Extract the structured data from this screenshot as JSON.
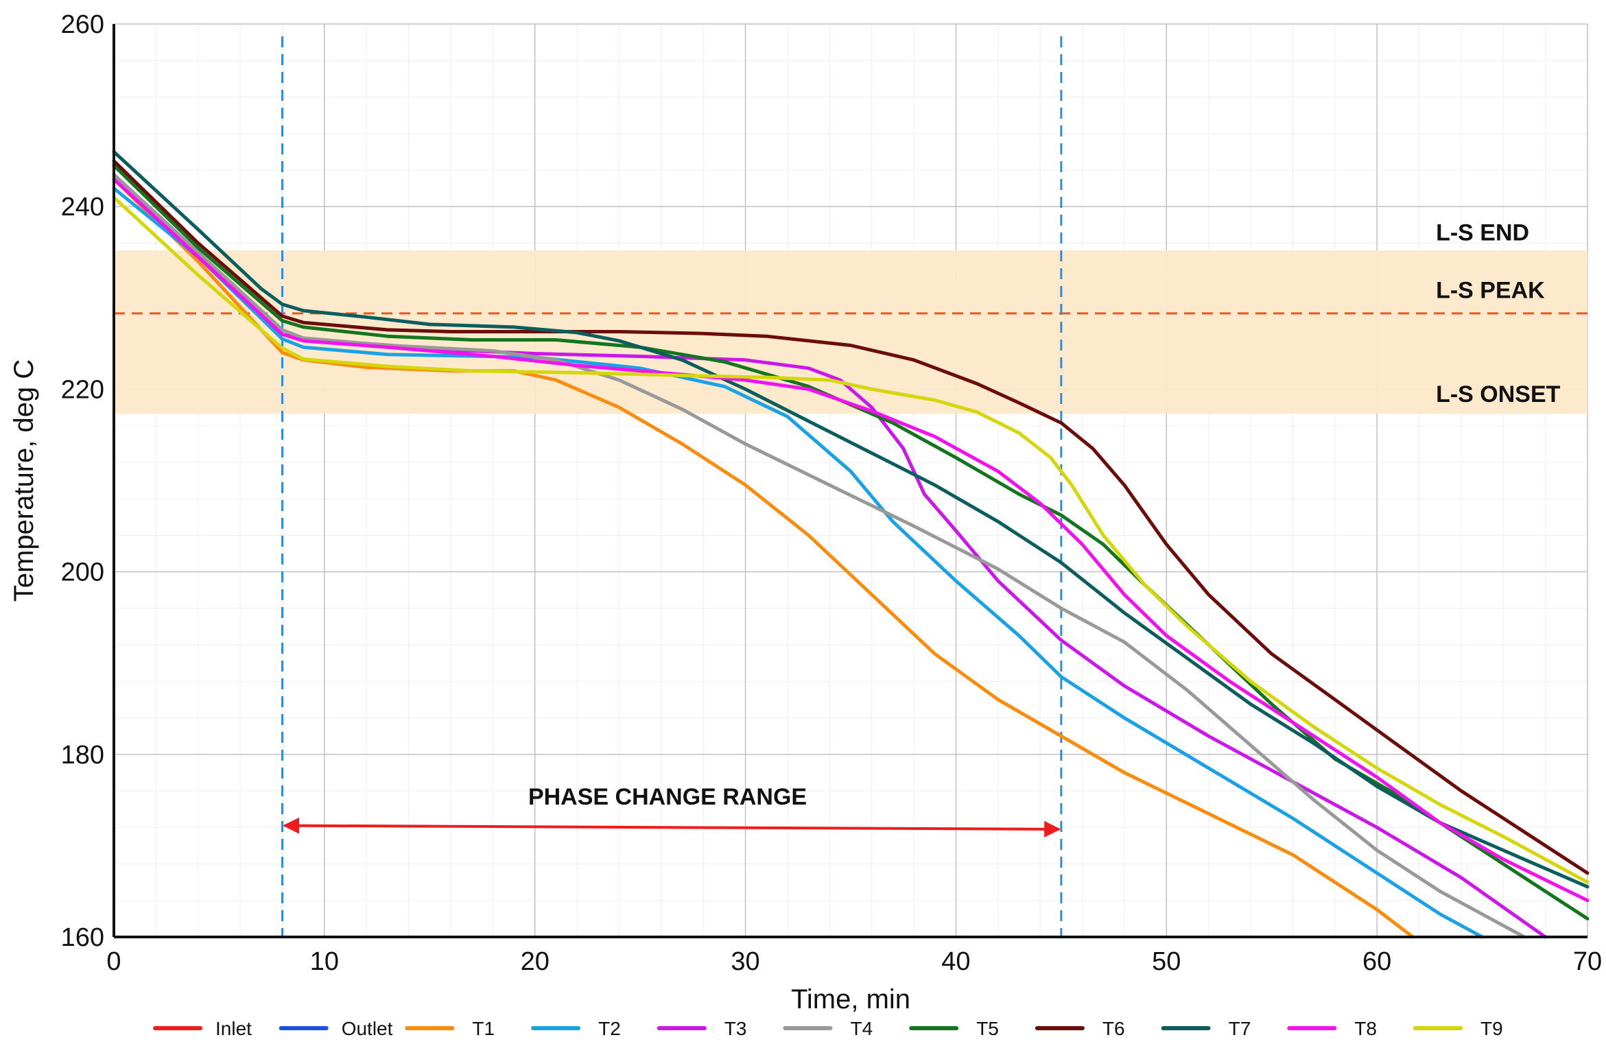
{
  "chart_data": {
    "type": "line",
    "title": "",
    "xlabel": "Time, min",
    "ylabel": "Temperature, deg C",
    "xlim": [
      0,
      70
    ],
    "ylim": [
      160,
      260
    ],
    "xticks": [
      0,
      10,
      20,
      30,
      40,
      50,
      60,
      70
    ],
    "yticks": [
      160,
      180,
      200,
      220,
      240,
      260
    ],
    "grid": true,
    "legend_position": "bottom",
    "band": {
      "y_from": 217.3,
      "y_to": 235.2,
      "color": "#fde8c8"
    },
    "hline": {
      "y": 228.3,
      "color": "#e8581e",
      "style": "dashed"
    },
    "vlines": [
      {
        "x": 8,
        "color": "#2a8de0",
        "style": "dashed"
      },
      {
        "x": 45,
        "color": "#2a8de0",
        "style": "dashed"
      }
    ],
    "annotations": [
      {
        "text": "L-S END",
        "x": 62.8,
        "y": 236.3
      },
      {
        "text": "L-S PEAK",
        "x": 62.8,
        "y": 230
      },
      {
        "text": "L-S ONSET",
        "x": 62.8,
        "y": 218.6
      },
      {
        "text": "PHASE CHANGE RANGE",
        "x": 26.3,
        "y": 174.5
      }
    ],
    "arrow": {
      "x_from": 8.1,
      "x_to": 44.9,
      "y_from": 172.2,
      "y_to": 171.8,
      "color": "#ee1c1c"
    },
    "series": [
      {
        "name": "Inlet",
        "color": "#ee1c1c",
        "points": []
      },
      {
        "name": "Outlet",
        "color": "#1a4fe0",
        "points": []
      },
      {
        "name": "T1",
        "color": "#fb8c0e",
        "points": [
          [
            0,
            243
          ],
          [
            4,
            234
          ],
          [
            8,
            224
          ],
          [
            9,
            223.2
          ],
          [
            12,
            222.4
          ],
          [
            16,
            222
          ],
          [
            19,
            222
          ],
          [
            21,
            221
          ],
          [
            24,
            218
          ],
          [
            27,
            214
          ],
          [
            30,
            209.5
          ],
          [
            33,
            204
          ],
          [
            36,
            197.5
          ],
          [
            39,
            191
          ],
          [
            42,
            186
          ],
          [
            45,
            182
          ],
          [
            48,
            178
          ],
          [
            52,
            173.5
          ],
          [
            56,
            169
          ],
          [
            60,
            163
          ],
          [
            61.7,
            160
          ]
        ]
      },
      {
        "name": "T2",
        "color": "#1ba1e6",
        "points": [
          [
            0,
            242
          ],
          [
            4,
            234.5
          ],
          [
            8,
            225.5
          ],
          [
            9,
            224.6
          ],
          [
            13,
            223.8
          ],
          [
            20,
            223.5
          ],
          [
            25,
            222.3
          ],
          [
            29,
            220.3
          ],
          [
            32,
            217
          ],
          [
            35,
            211
          ],
          [
            37,
            205.5
          ],
          [
            40,
            199
          ],
          [
            43,
            193
          ],
          [
            45,
            188.5
          ],
          [
            48,
            184
          ],
          [
            52,
            178.5
          ],
          [
            56,
            173
          ],
          [
            60,
            167
          ],
          [
            63,
            162.5
          ],
          [
            65,
            160
          ]
        ]
      },
      {
        "name": "T3",
        "color": "#cc17ea",
        "points": [
          [
            0,
            243.5
          ],
          [
            4,
            235
          ],
          [
            8,
            226
          ],
          [
            9,
            225.5
          ],
          [
            12,
            225
          ],
          [
            16,
            224.3
          ],
          [
            20,
            223.9
          ],
          [
            25,
            223.6
          ],
          [
            30,
            223.2
          ],
          [
            33,
            222.3
          ],
          [
            34.5,
            221
          ],
          [
            36,
            218
          ],
          [
            37.5,
            213.5
          ],
          [
            38.5,
            208.5
          ],
          [
            40,
            204.5
          ],
          [
            42,
            199
          ],
          [
            45,
            192.5
          ],
          [
            48,
            187.5
          ],
          [
            52,
            182
          ],
          [
            56,
            177
          ],
          [
            60,
            172
          ],
          [
            64,
            166.5
          ],
          [
            68,
            160
          ]
        ]
      },
      {
        "name": "T4",
        "color": "#999999",
        "points": [
          [
            0,
            243.5
          ],
          [
            4,
            235
          ],
          [
            8,
            226.5
          ],
          [
            9,
            225.6
          ],
          [
            13,
            224.8
          ],
          [
            18,
            224.2
          ],
          [
            21,
            223.2
          ],
          [
            24,
            221
          ],
          [
            27,
            217.8
          ],
          [
            30,
            214
          ],
          [
            34,
            209.5
          ],
          [
            38,
            205
          ],
          [
            42,
            200.3
          ],
          [
            45,
            196
          ],
          [
            48,
            192.3
          ],
          [
            51,
            187
          ],
          [
            54,
            181
          ],
          [
            57,
            175
          ],
          [
            60,
            169.5
          ],
          [
            63,
            165
          ],
          [
            67,
            160
          ]
        ]
      },
      {
        "name": "T5",
        "color": "#13761f",
        "points": [
          [
            0,
            244.5
          ],
          [
            4,
            235.5
          ],
          [
            8,
            227.5
          ],
          [
            9,
            226.8
          ],
          [
            13,
            225.8
          ],
          [
            17,
            225.4
          ],
          [
            21,
            225.4
          ],
          [
            25,
            224.6
          ],
          [
            29,
            223
          ],
          [
            33,
            220.3
          ],
          [
            37,
            216.3
          ],
          [
            40,
            212.5
          ],
          [
            43,
            208.5
          ],
          [
            45,
            206.2
          ],
          [
            47,
            203
          ],
          [
            49,
            198.5
          ],
          [
            52,
            192
          ],
          [
            55,
            185.5
          ],
          [
            58,
            179.5
          ],
          [
            61,
            175.5
          ],
          [
            64,
            171
          ],
          [
            67,
            166.5
          ],
          [
            70,
            162
          ]
        ]
      },
      {
        "name": "T6",
        "color": "#6b0e0b",
        "points": [
          [
            0,
            245
          ],
          [
            4,
            236
          ],
          [
            8,
            228
          ],
          [
            9,
            227.3
          ],
          [
            13,
            226.5
          ],
          [
            16,
            226.3
          ],
          [
            20,
            226.3
          ],
          [
            24,
            226.3
          ],
          [
            28,
            226.1
          ],
          [
            31,
            225.8
          ],
          [
            35,
            224.8
          ],
          [
            38,
            223.2
          ],
          [
            41,
            220.6
          ],
          [
            43,
            218.5
          ],
          [
            45,
            216.3
          ],
          [
            46.5,
            213.5
          ],
          [
            48,
            209.5
          ],
          [
            50,
            203
          ],
          [
            52,
            197.5
          ],
          [
            55,
            191
          ],
          [
            58,
            186
          ],
          [
            61,
            181
          ],
          [
            64,
            176
          ],
          [
            67,
            171.5
          ],
          [
            70,
            167
          ]
        ]
      },
      {
        "name": "T7",
        "color": "#0c5d5e",
        "points": [
          [
            0,
            246
          ],
          [
            4,
            237.5
          ],
          [
            7,
            231
          ],
          [
            8,
            229.3
          ],
          [
            9,
            228.6
          ],
          [
            12,
            227.9
          ],
          [
            15,
            227.1
          ],
          [
            19,
            226.8
          ],
          [
            22,
            226.2
          ],
          [
            24,
            225.3
          ],
          [
            27,
            223.2
          ],
          [
            30,
            220
          ],
          [
            33,
            216.5
          ],
          [
            36,
            213
          ],
          [
            39,
            209.5
          ],
          [
            42,
            205.5
          ],
          [
            45,
            201
          ],
          [
            48,
            195.5
          ],
          [
            51,
            190.5
          ],
          [
            54,
            185.5
          ],
          [
            57,
            181.2
          ],
          [
            60,
            176.5
          ],
          [
            63,
            172.5
          ],
          [
            67,
            168.5
          ],
          [
            70,
            165.5
          ]
        ]
      },
      {
        "name": "T8",
        "color": "#f112ee",
        "points": [
          [
            0,
            243
          ],
          [
            4,
            234.5
          ],
          [
            8,
            226
          ],
          [
            9,
            225.3
          ],
          [
            13,
            224.6
          ],
          [
            18,
            223.6
          ],
          [
            22,
            222.6
          ],
          [
            26,
            221.8
          ],
          [
            30,
            221
          ],
          [
            33,
            220
          ],
          [
            36,
            217.6
          ],
          [
            39,
            214.8
          ],
          [
            42,
            211
          ],
          [
            44,
            207.5
          ],
          [
            46,
            203
          ],
          [
            48,
            197.5
          ],
          [
            50,
            193
          ],
          [
            53,
            188
          ],
          [
            57,
            182
          ],
          [
            60,
            177.5
          ],
          [
            63,
            172.5
          ],
          [
            66,
            168.5
          ],
          [
            70,
            164
          ]
        ]
      },
      {
        "name": "T9",
        "color": "#d6d60d",
        "points": [
          [
            0,
            241
          ],
          [
            4,
            232.5
          ],
          [
            8,
            224.5
          ],
          [
            9,
            223.3
          ],
          [
            13,
            222.5
          ],
          [
            17,
            222
          ],
          [
            22,
            221.8
          ],
          [
            27,
            221.5
          ],
          [
            31,
            221.3
          ],
          [
            34,
            221
          ],
          [
            36,
            220
          ],
          [
            39,
            218.8
          ],
          [
            41,
            217.5
          ],
          [
            43,
            215.2
          ],
          [
            44.5,
            212.5
          ],
          [
            45.5,
            209.5
          ],
          [
            47,
            204
          ],
          [
            49,
            198.5
          ],
          [
            51,
            194
          ],
          [
            54,
            188
          ],
          [
            57,
            183
          ],
          [
            60,
            178.5
          ],
          [
            63,
            174.5
          ],
          [
            66,
            171
          ],
          [
            70,
            166
          ]
        ]
      }
    ]
  }
}
